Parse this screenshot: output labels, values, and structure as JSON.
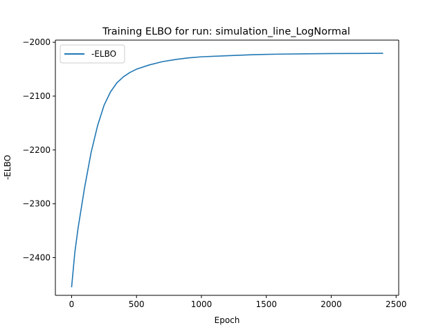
{
  "chart_data": {
    "type": "line",
    "title": "Training ELBO for run: simulation_line_LogNormal",
    "xlabel": "Epoch",
    "ylabel": "-ELBO",
    "xlim": [
      -125,
      2520
    ],
    "ylim": [
      -2470,
      -1996
    ],
    "xticks": [
      0,
      500,
      1000,
      1500,
      2000,
      2500
    ],
    "yticks": [
      -2400,
      -2300,
      -2200,
      -2100,
      -2000
    ],
    "xtick_labels": [
      "0",
      "500",
      "1000",
      "1500",
      "2000",
      "2500"
    ],
    "ytick_labels": [
      "−2400",
      "−2300",
      "−2200",
      "−2100",
      "−2000"
    ],
    "grid": false,
    "legend_position": "upper left",
    "series": [
      {
        "name": "-ELBO",
        "color": "#1f77b4",
        "x": [
          0,
          25,
          50,
          100,
          150,
          200,
          250,
          300,
          350,
          400,
          450,
          500,
          600,
          700,
          800,
          900,
          1000,
          1200,
          1400,
          1600,
          1800,
          2000,
          2200,
          2400
        ],
        "y": [
          -2455,
          -2390,
          -2345,
          -2270,
          -2205,
          -2155,
          -2117,
          -2092,
          -2075,
          -2064,
          -2056,
          -2050,
          -2042,
          -2036,
          -2032,
          -2029,
          -2027,
          -2025,
          -2023,
          -2022,
          -2021.5,
          -2021,
          -2020.8,
          -2020.5
        ]
      }
    ]
  }
}
